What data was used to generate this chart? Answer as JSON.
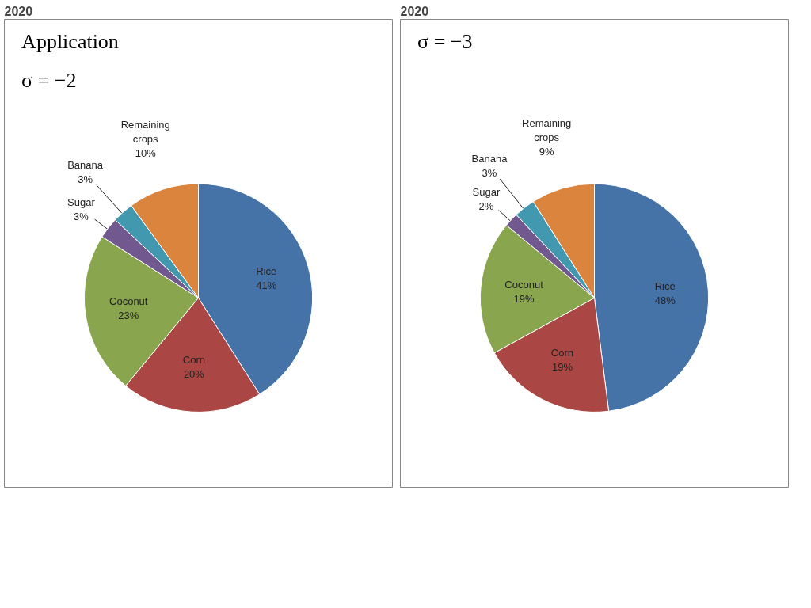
{
  "chart_data": [
    {
      "type": "pie",
      "title": "2020",
      "categories": [
        "Rice",
        "Corn",
        "Coconut",
        "Sugar",
        "Banana",
        "Remaining crops"
      ],
      "values": [
        41,
        20,
        23,
        3,
        3,
        10
      ],
      "value_labels": [
        "41%",
        "20%",
        "23%",
        "3%",
        "3%",
        "10%"
      ],
      "colors": [
        "#4572a7",
        "#aa4643",
        "#89a54e",
        "#71588f",
        "#4198af",
        "#db843d"
      ],
      "annotations": [
        "Application",
        "σ = −2"
      ]
    },
    {
      "type": "pie",
      "title": "2020",
      "categories": [
        "Rice",
        "Corn",
        "Coconut",
        "Sugar",
        "Banana",
        "Remaining crops"
      ],
      "values": [
        48,
        19,
        19,
        2,
        3,
        9
      ],
      "value_labels": [
        "48%",
        "19%",
        "19%",
        "2%",
        "3%",
        "9%"
      ],
      "colors": [
        "#4572a7",
        "#aa4643",
        "#89a54e",
        "#71588f",
        "#4198af",
        "#db843d"
      ],
      "annotations": [
        "σ = −3"
      ]
    }
  ]
}
